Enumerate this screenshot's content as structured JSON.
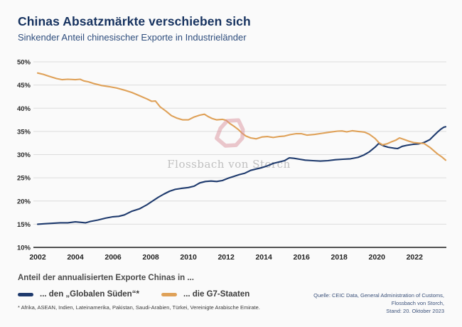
{
  "header": {
    "title": "Chinas Absatzmärkte verschieben sich",
    "subtitle": "Sinkender Anteil chinesischer Exporte in Industrieländer"
  },
  "chart_data": {
    "type": "line",
    "title": "Chinas Absatzmärkte verschieben sich",
    "subtitle": "Sinkender Anteil chinesischer Exporte in Industrieländer",
    "xlabel": "",
    "ylabel": "",
    "xlim": [
      2002,
      2023.65
    ],
    "ylim": [
      10,
      50
    ],
    "grid": "horizontal",
    "x_ticks": [
      2002,
      2004,
      2006,
      2008,
      2010,
      2012,
      2014,
      2016,
      2018,
      2020,
      2022
    ],
    "x_tick_labels": [
      "2002",
      "2004",
      "2006",
      "2008",
      "2010",
      "2012",
      "2014",
      "2016",
      "2018",
      "2020",
      "2022"
    ],
    "y_ticks": [
      50,
      45,
      40,
      35,
      30,
      25,
      20,
      15,
      10
    ],
    "y_tick_labels": [
      "50%",
      "45%",
      "40%",
      "35%",
      "30%",
      "25%",
      "20%",
      "15%",
      "10%"
    ],
    "watermark": "Flossbach von Storch",
    "annotation": {
      "type": "hand-drawn-circle",
      "x": 2012.3,
      "y": 34.6,
      "color": "#d9929c"
    },
    "series": [
      {
        "name": "... den „Globalen Süden“*",
        "color": "#1e3a6d",
        "points": [
          [
            2002.0,
            15.0
          ],
          [
            2002.4,
            15.1
          ],
          [
            2002.8,
            15.2
          ],
          [
            2003.2,
            15.3
          ],
          [
            2003.6,
            15.3
          ],
          [
            2004.0,
            15.5
          ],
          [
            2004.3,
            15.4
          ],
          [
            2004.55,
            15.3
          ],
          [
            2004.8,
            15.6
          ],
          [
            2005.2,
            15.9
          ],
          [
            2005.6,
            16.3
          ],
          [
            2006.0,
            16.6
          ],
          [
            2006.3,
            16.7
          ],
          [
            2006.6,
            17.0
          ],
          [
            2007.0,
            17.8
          ],
          [
            2007.4,
            18.3
          ],
          [
            2007.8,
            19.2
          ],
          [
            2008.1,
            20.0
          ],
          [
            2008.4,
            20.8
          ],
          [
            2008.7,
            21.5
          ],
          [
            2009.0,
            22.1
          ],
          [
            2009.3,
            22.5
          ],
          [
            2009.6,
            22.7
          ],
          [
            2010.0,
            22.9
          ],
          [
            2010.3,
            23.2
          ],
          [
            2010.6,
            23.9
          ],
          [
            2010.9,
            24.2
          ],
          [
            2011.2,
            24.3
          ],
          [
            2011.5,
            24.2
          ],
          [
            2011.8,
            24.4
          ],
          [
            2012.1,
            24.9
          ],
          [
            2012.4,
            25.3
          ],
          [
            2012.7,
            25.7
          ],
          [
            2013.0,
            26.0
          ],
          [
            2013.3,
            26.6
          ],
          [
            2013.6,
            26.9
          ],
          [
            2013.9,
            27.2
          ],
          [
            2014.2,
            27.6
          ],
          [
            2014.5,
            28.1
          ],
          [
            2014.8,
            28.4
          ],
          [
            2015.1,
            28.7
          ],
          [
            2015.35,
            29.3
          ],
          [
            2015.6,
            29.2
          ],
          [
            2015.9,
            29.0
          ],
          [
            2016.2,
            28.8
          ],
          [
            2016.6,
            28.7
          ],
          [
            2017.0,
            28.6
          ],
          [
            2017.4,
            28.7
          ],
          [
            2017.8,
            28.9
          ],
          [
            2018.2,
            29.0
          ],
          [
            2018.6,
            29.1
          ],
          [
            2019.0,
            29.4
          ],
          [
            2019.3,
            29.9
          ],
          [
            2019.6,
            30.6
          ],
          [
            2019.9,
            31.6
          ],
          [
            2020.1,
            32.4
          ],
          [
            2020.35,
            31.9
          ],
          [
            2020.6,
            31.6
          ],
          [
            2020.9,
            31.4
          ],
          [
            2021.1,
            31.3
          ],
          [
            2021.35,
            31.8
          ],
          [
            2021.6,
            32.0
          ],
          [
            2021.9,
            32.2
          ],
          [
            2022.2,
            32.3
          ],
          [
            2022.5,
            32.6
          ],
          [
            2022.8,
            33.2
          ],
          [
            2023.0,
            34.0
          ],
          [
            2023.2,
            34.8
          ],
          [
            2023.4,
            35.5
          ],
          [
            2023.55,
            35.9
          ],
          [
            2023.65,
            36.0
          ]
        ]
      },
      {
        "name": "... die G7-Staaten",
        "color": "#dfa158",
        "points": [
          [
            2002.0,
            47.6
          ],
          [
            2002.3,
            47.3
          ],
          [
            2002.6,
            46.9
          ],
          [
            2003.0,
            46.4
          ],
          [
            2003.3,
            46.15
          ],
          [
            2003.6,
            46.25
          ],
          [
            2004.0,
            46.15
          ],
          [
            2004.25,
            46.25
          ],
          [
            2004.45,
            45.9
          ],
          [
            2004.7,
            45.7
          ],
          [
            2005.0,
            45.3
          ],
          [
            2005.4,
            44.9
          ],
          [
            2005.8,
            44.65
          ],
          [
            2006.2,
            44.35
          ],
          [
            2006.6,
            43.9
          ],
          [
            2007.0,
            43.4
          ],
          [
            2007.4,
            42.7
          ],
          [
            2007.8,
            42.0
          ],
          [
            2008.05,
            41.5
          ],
          [
            2008.25,
            41.55
          ],
          [
            2008.5,
            40.3
          ],
          [
            2008.8,
            39.4
          ],
          [
            2009.1,
            38.4
          ],
          [
            2009.4,
            37.85
          ],
          [
            2009.7,
            37.5
          ],
          [
            2010.0,
            37.5
          ],
          [
            2010.3,
            38.1
          ],
          [
            2010.6,
            38.5
          ],
          [
            2010.85,
            38.7
          ],
          [
            2011.05,
            38.2
          ],
          [
            2011.25,
            37.8
          ],
          [
            2011.5,
            37.5
          ],
          [
            2011.8,
            37.6
          ],
          [
            2012.0,
            37.4
          ],
          [
            2012.2,
            36.7
          ],
          [
            2012.45,
            36.0
          ],
          [
            2012.65,
            35.4
          ],
          [
            2012.85,
            34.6
          ],
          [
            2013.05,
            34.0
          ],
          [
            2013.3,
            33.6
          ],
          [
            2013.6,
            33.4
          ],
          [
            2013.9,
            33.8
          ],
          [
            2014.2,
            33.9
          ],
          [
            2014.5,
            33.7
          ],
          [
            2014.8,
            33.9
          ],
          [
            2015.1,
            34.0
          ],
          [
            2015.4,
            34.3
          ],
          [
            2015.7,
            34.5
          ],
          [
            2016.0,
            34.5
          ],
          [
            2016.3,
            34.2
          ],
          [
            2016.7,
            34.35
          ],
          [
            2017.1,
            34.6
          ],
          [
            2017.5,
            34.85
          ],
          [
            2017.9,
            35.05
          ],
          [
            2018.15,
            35.1
          ],
          [
            2018.4,
            34.9
          ],
          [
            2018.7,
            35.15
          ],
          [
            2019.0,
            35.0
          ],
          [
            2019.35,
            34.85
          ],
          [
            2019.6,
            34.4
          ],
          [
            2019.9,
            33.5
          ],
          [
            2020.1,
            32.6
          ],
          [
            2020.3,
            32.1
          ],
          [
            2020.55,
            32.35
          ],
          [
            2020.8,
            32.8
          ],
          [
            2021.0,
            33.1
          ],
          [
            2021.2,
            33.6
          ],
          [
            2021.45,
            33.25
          ],
          [
            2021.7,
            32.9
          ],
          [
            2021.95,
            32.6
          ],
          [
            2022.2,
            32.5
          ],
          [
            2022.5,
            32.4
          ],
          [
            2022.8,
            31.6
          ],
          [
            2023.0,
            30.9
          ],
          [
            2023.2,
            30.2
          ],
          [
            2023.45,
            29.5
          ],
          [
            2023.65,
            28.8
          ]
        ]
      }
    ]
  },
  "legend": {
    "title": "Anteil der annualisierten Exporte Chinas in ...",
    "items": [
      {
        "label": "... den „Globalen Süden“*",
        "color": "#1e3a6d"
      },
      {
        "label": "... die G7-Staaten",
        "color": "#dfa158"
      }
    ]
  },
  "footnote": "* Afrika, ASEAN, Indien, Lateinamerika, Pakistan, Saudi-Arabien, Türkei, Vereinigte Arabische Emirate.",
  "source": {
    "lines": [
      "Quelle: CEIC Data, General Administration of Customs,",
      "Flossbach von Storch,",
      "Stand: 20. Oktober 2023"
    ]
  },
  "colors": {
    "background": "#fafafa",
    "title": "#16325f",
    "subtitle": "#2e4d7d",
    "grid": "#dcdcdc",
    "axis": "#3a3a3a",
    "global_south_line": "#1e3a6d",
    "g7_line": "#dfa158",
    "annotation_circle": "#d9929c",
    "watermark": "#c0c0c0"
  }
}
